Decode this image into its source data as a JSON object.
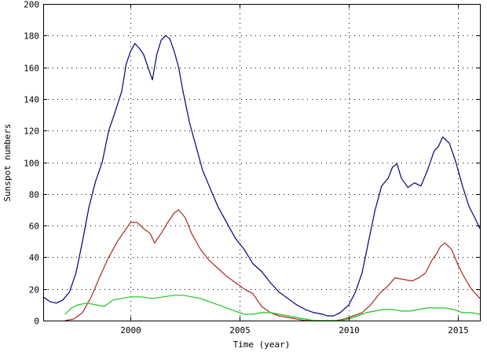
{
  "chart_data": {
    "type": "line",
    "title": "",
    "xlabel": "Time (year)",
    "ylabel": "Sunspot numbers",
    "xlim": [
      1996,
      2016
    ],
    "ylim": [
      0,
      200
    ],
    "xticks": [
      2000,
      2005,
      2010,
      2015
    ],
    "yticks": [
      0,
      20,
      40,
      60,
      80,
      100,
      120,
      140,
      160,
      180,
      200
    ],
    "grid": true,
    "legend": "none",
    "series": [
      {
        "color": "#000080",
        "x": [
          1996.0,
          1996.3,
          1996.6,
          1996.9,
          1997.2,
          1997.5,
          1997.8,
          1998.1,
          1998.4,
          1998.7,
          1999.0,
          1999.3,
          1999.6,
          1999.8,
          2000.0,
          2000.2,
          2000.4,
          2000.6,
          2000.8,
          2001.0,
          2001.2,
          2001.4,
          2001.6,
          2001.8,
          2002.0,
          2002.2,
          2002.4,
          2002.7,
          2003.0,
          2003.3,
          2003.6,
          2004.0,
          2004.4,
          2004.8,
          2005.2,
          2005.6,
          2006.0,
          2006.4,
          2006.8,
          2007.2,
          2007.6,
          2008.0,
          2008.4,
          2008.8,
          2009.0,
          2009.3,
          2009.6,
          2010.0,
          2010.3,
          2010.6,
          2010.9,
          2011.2,
          2011.5,
          2011.8,
          2012.0,
          2012.2,
          2012.4,
          2012.7,
          2013.0,
          2013.3,
          2013.6,
          2013.9,
          2014.1,
          2014.3,
          2014.6,
          2014.9,
          2015.2,
          2015.5,
          2015.8,
          2016.0
        ],
        "y": [
          15,
          12,
          11,
          13,
          18,
          30,
          50,
          72,
          88,
          100,
          120,
          132,
          145,
          162,
          170,
          175,
          172,
          168,
          160,
          152,
          168,
          177,
          180,
          178,
          170,
          160,
          145,
          125,
          110,
          95,
          85,
          72,
          62,
          52,
          45,
          36,
          31,
          24,
          18,
          14,
          10,
          7,
          5,
          4,
          3,
          3,
          5,
          10,
          18,
          30,
          50,
          70,
          85,
          90,
          97,
          99,
          90,
          84,
          87,
          85,
          95,
          107,
          110,
          116,
          112,
          100,
          85,
          72,
          64,
          58
        ]
      },
      {
        "color": "#aa2a1e",
        "x": [
          1997.0,
          1997.4,
          1997.8,
          1998.2,
          1998.6,
          1999.0,
          1999.4,
          1999.8,
          2000.0,
          2000.3,
          2000.6,
          2000.9,
          2001.1,
          2001.4,
          2001.7,
          2002.0,
          2002.2,
          2002.5,
          2002.8,
          2003.2,
          2003.6,
          2004.0,
          2004.4,
          2004.8,
          2005.2,
          2005.6,
          2006.0,
          2006.4,
          2006.8,
          2007.2,
          2007.6,
          2008.0,
          2008.4,
          2008.7,
          2009.0,
          2009.4,
          2009.8,
          2010.2,
          2010.6,
          2011.0,
          2011.4,
          2011.8,
          2012.1,
          2012.5,
          2012.9,
          2013.2,
          2013.5,
          2013.8,
          2014.0,
          2014.2,
          2014.4,
          2014.7,
          2015.0,
          2015.3,
          2015.6,
          2016.0
        ],
        "y": [
          0,
          1,
          5,
          15,
          28,
          40,
          50,
          58,
          62,
          62,
          58,
          55,
          49,
          55,
          62,
          68,
          70,
          65,
          55,
          45,
          38,
          33,
          28,
          24,
          20,
          17,
          9,
          5,
          3,
          2,
          1,
          0,
          0,
          0,
          0,
          0,
          1,
          3,
          5,
          10,
          17,
          22,
          27,
          26,
          25,
          27,
          30,
          38,
          42,
          47,
          49,
          45,
          35,
          27,
          20,
          14
        ]
      },
      {
        "color": "#22c422",
        "x": [
          1997.0,
          1997.3,
          1997.6,
          1998.0,
          1998.4,
          1998.8,
          1999.2,
          1999.6,
          2000.0,
          2000.5,
          2001.0,
          2001.5,
          2002.0,
          2002.4,
          2002.8,
          2003.2,
          2003.6,
          2004.0,
          2004.4,
          2004.8,
          2005.2,
          2005.6,
          2006.0,
          2006.4,
          2006.8,
          2007.2,
          2007.6,
          2008.0,
          2008.4,
          2008.8,
          2009.2,
          2009.6,
          2010.0,
          2010.4,
          2010.8,
          2011.2,
          2011.6,
          2012.0,
          2012.4,
          2012.8,
          2013.2,
          2013.6,
          2014.0,
          2014.4,
          2014.8,
          2015.2,
          2015.6,
          2016.0
        ],
        "y": [
          4,
          8,
          10,
          11,
          10,
          9,
          13,
          14,
          15,
          15,
          14,
          15,
          16,
          16,
          15,
          14,
          12,
          10,
          8,
          6,
          4,
          4,
          5,
          5,
          4,
          3,
          2,
          1,
          0,
          0,
          0,
          0,
          1,
          3,
          5,
          6,
          7,
          7,
          6,
          6,
          7,
          8,
          8,
          8,
          7,
          5,
          5,
          4
        ]
      }
    ]
  }
}
